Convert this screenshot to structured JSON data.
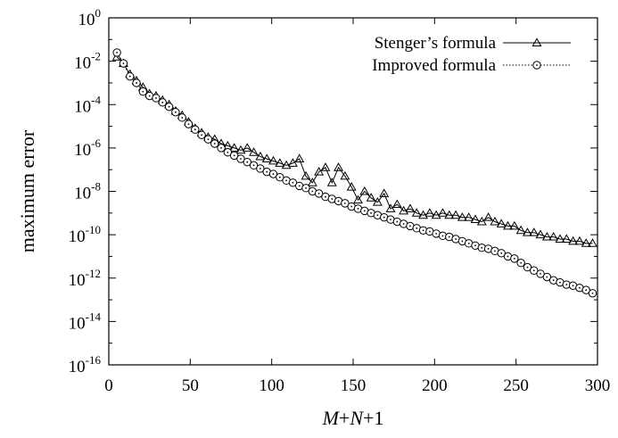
{
  "chart_data": {
    "type": "line",
    "xlabel": "M+N+1",
    "xlabel_parts": [
      {
        "text": "M",
        "italic": true
      },
      {
        "text": "+",
        "italic": false
      },
      {
        "text": "N",
        "italic": true
      },
      {
        "text": "+1",
        "italic": false
      }
    ],
    "ylabel": "maximum error",
    "xlim": [
      0,
      300
    ],
    "ylim_exponent": [
      -16,
      0
    ],
    "y_scale": "log",
    "x_ticks": [
      {
        "value": 0,
        "label": "0"
      },
      {
        "value": 50,
        "label": "50"
      },
      {
        "value": 100,
        "label": "100"
      },
      {
        "value": 150,
        "label": "150"
      },
      {
        "value": 200,
        "label": "200"
      },
      {
        "value": 250,
        "label": "250"
      },
      {
        "value": 300,
        "label": "300"
      }
    ],
    "y_ticks": [
      {
        "exp": 0,
        "base": "10",
        "sup": "0"
      },
      {
        "exp": -2,
        "base": "10",
        "sup": "-2"
      },
      {
        "exp": -4,
        "base": "10",
        "sup": "-4"
      },
      {
        "exp": -6,
        "base": "10",
        "sup": "-6"
      },
      {
        "exp": -8,
        "base": "10",
        "sup": "-8"
      },
      {
        "exp": -10,
        "base": "10",
        "sup": "-10"
      },
      {
        "exp": -12,
        "base": "10",
        "sup": "-12"
      },
      {
        "exp": -14,
        "base": "10",
        "sup": "-14"
      },
      {
        "exp": -16,
        "base": "10",
        "sup": "-16"
      }
    ],
    "grid": false,
    "legend_position": "top-right",
    "series": [
      {
        "name": "Stenger’s formula",
        "marker": "triangle",
        "line_style": "solid",
        "x": [
          5,
          9,
          13,
          17,
          21,
          25,
          29,
          33,
          37,
          41,
          45,
          49,
          53,
          57,
          61,
          65,
          69,
          73,
          77,
          81,
          85,
          89,
          93,
          97,
          101,
          105,
          109,
          113,
          117,
          121,
          125,
          129,
          133,
          137,
          141,
          145,
          149,
          153,
          157,
          161,
          165,
          169,
          173,
          177,
          181,
          185,
          189,
          193,
          197,
          201,
          205,
          209,
          213,
          217,
          221,
          225,
          229,
          233,
          237,
          241,
          245,
          249,
          253,
          257,
          261,
          265,
          269,
          273,
          277,
          281,
          285,
          289,
          293,
          297
        ],
        "y_log10": [
          -1.8,
          -2.1,
          -2.6,
          -2.9,
          -3.2,
          -3.5,
          -3.6,
          -3.8,
          -4.0,
          -4.3,
          -4.5,
          -4.8,
          -5.1,
          -5.3,
          -5.5,
          -5.6,
          -5.8,
          -5.9,
          -6.0,
          -6.1,
          -6.0,
          -6.2,
          -6.4,
          -6.5,
          -6.6,
          -6.7,
          -6.8,
          -6.7,
          -6.5,
          -7.3,
          -7.6,
          -7.1,
          -6.9,
          -7.6,
          -6.9,
          -7.3,
          -7.8,
          -8.4,
          -8.0,
          -8.3,
          -8.5,
          -8.1,
          -8.8,
          -8.6,
          -8.9,
          -8.8,
          -9.0,
          -9.1,
          -9.0,
          -9.1,
          -9.0,
          -9.1,
          -9.1,
          -9.2,
          -9.2,
          -9.3,
          -9.4,
          -9.2,
          -9.4,
          -9.5,
          -9.6,
          -9.6,
          -9.8,
          -9.9,
          -9.9,
          -10.0,
          -10.1,
          -10.1,
          -10.2,
          -10.2,
          -10.3,
          -10.3,
          -10.4,
          -10.4
        ]
      },
      {
        "name": "Improved formula",
        "marker": "circle",
        "line_style": "dotted",
        "x": [
          5,
          9,
          13,
          17,
          21,
          25,
          29,
          33,
          37,
          41,
          45,
          49,
          53,
          57,
          61,
          65,
          69,
          73,
          77,
          81,
          85,
          89,
          93,
          97,
          101,
          105,
          109,
          113,
          117,
          121,
          125,
          129,
          133,
          137,
          141,
          145,
          149,
          153,
          157,
          161,
          165,
          169,
          173,
          177,
          181,
          185,
          189,
          193,
          197,
          201,
          205,
          209,
          213,
          217,
          221,
          225,
          229,
          233,
          237,
          241,
          245,
          249,
          253,
          257,
          261,
          265,
          269,
          273,
          277,
          281,
          285,
          289,
          293,
          297
        ],
        "y_log10": [
          -1.6,
          -2.1,
          -2.7,
          -3.0,
          -3.4,
          -3.6,
          -3.7,
          -3.9,
          -4.1,
          -4.35,
          -4.6,
          -4.9,
          -5.15,
          -5.4,
          -5.6,
          -5.8,
          -6.0,
          -6.2,
          -6.35,
          -6.5,
          -6.65,
          -6.8,
          -6.95,
          -7.1,
          -7.2,
          -7.35,
          -7.5,
          -7.6,
          -7.75,
          -7.85,
          -8.0,
          -8.1,
          -8.25,
          -8.35,
          -8.45,
          -8.55,
          -8.7,
          -8.8,
          -8.9,
          -9.0,
          -9.1,
          -9.2,
          -9.3,
          -9.4,
          -9.5,
          -9.6,
          -9.7,
          -9.8,
          -9.85,
          -9.95,
          -10.05,
          -10.1,
          -10.2,
          -10.3,
          -10.4,
          -10.5,
          -10.6,
          -10.65,
          -10.75,
          -10.85,
          -11.0,
          -11.1,
          -11.3,
          -11.5,
          -11.65,
          -11.8,
          -11.95,
          -12.1,
          -12.2,
          -12.3,
          -12.35,
          -12.45,
          -12.55,
          -12.7
        ]
      }
    ]
  }
}
